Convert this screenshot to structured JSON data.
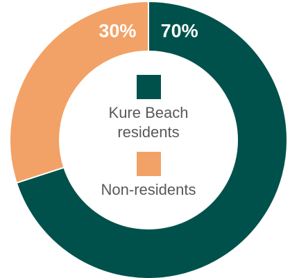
{
  "chart_data": {
    "type": "pie",
    "donut": true,
    "categories": [
      "Kure Beach residents",
      "Non-residents"
    ],
    "values": [
      70,
      30
    ],
    "value_labels": [
      "70%",
      "30%"
    ],
    "colors": [
      "#00514b",
      "#f2a266"
    ]
  }
}
